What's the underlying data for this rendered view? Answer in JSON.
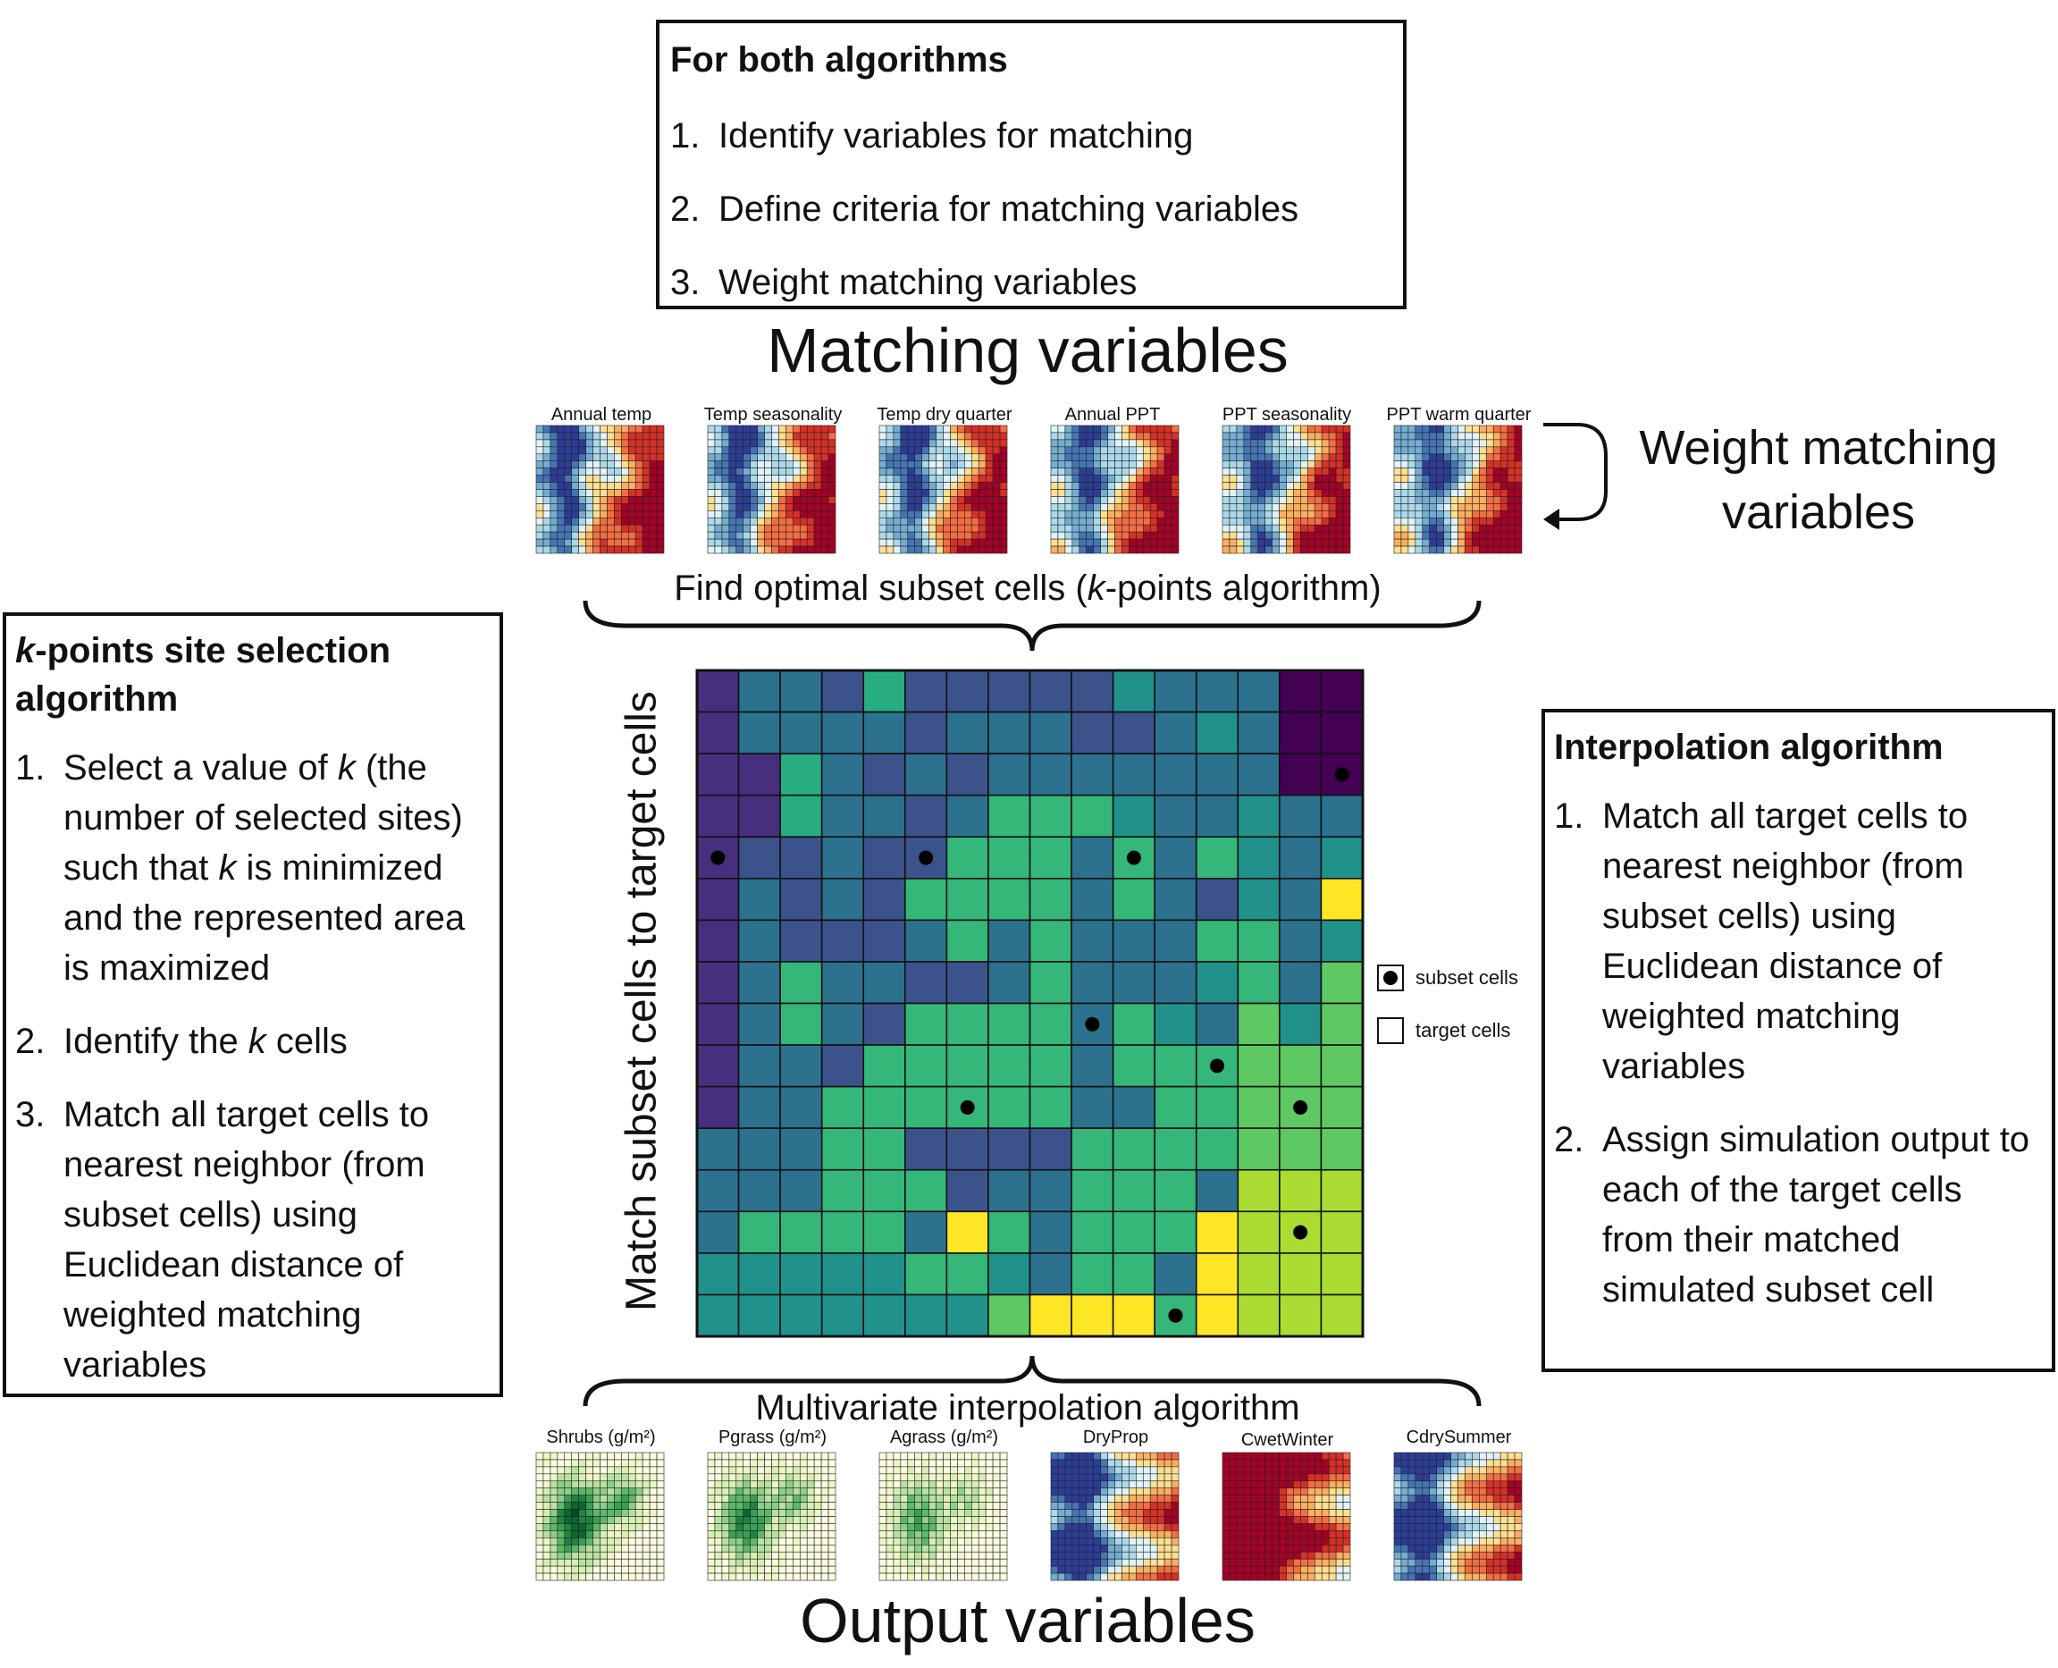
{
  "top_box": {
    "title": "For both algorithms",
    "steps": [
      "Identify variables for matching",
      "Define criteria for matching variables",
      "Weight matching variables"
    ],
    "numbers": [
      "1.",
      "2.",
      "3."
    ]
  },
  "matching_title": "Matching variables",
  "matching_maps": [
    {
      "label": "Annual temp",
      "palette": "diverging"
    },
    {
      "label": "Temp seasonality",
      "palette": "diverging"
    },
    {
      "label": "Temp dry quarter",
      "palette": "diverging"
    },
    {
      "label": "Annual PPT",
      "palette": "diverging"
    },
    {
      "label": "PPT seasonality",
      "palette": "diverging"
    },
    {
      "label": "PPT warm quarter",
      "palette": "diverging"
    }
  ],
  "weight_label_line1": "Weight matching",
  "weight_label_line2": "variables",
  "find_subset_prefix": "Find optimal subset cells (",
  "find_subset_k": "k",
  "find_subset_suffix": "-points algorithm)",
  "match_axis_label": "Match subset cells to target cells",
  "left_box": {
    "title_k": "k",
    "title_rest": "-points site selection",
    "title_line2": "algorithm",
    "numbers": [
      "1.",
      "2.",
      "3."
    ],
    "step1_parts": [
      "Select a value of ",
      "k",
      " (the number of selected sites) such that ",
      "k",
      " is minimized and the represented area is maximized"
    ],
    "step2_parts": [
      "Identify the ",
      "k",
      " cells"
    ],
    "step3": "Match all target cells to nearest neighbor (from subset cells) using Euclidean distance of weighted matching variables"
  },
  "right_box": {
    "title": "Interpolation algorithm",
    "numbers": [
      "1.",
      "2."
    ],
    "steps": [
      "Match all target cells to nearest neighbor (from subset cells) using Euclidean distance of weighted matching variables",
      "Assign simulation output to each of the target cells from their matched simulated subset cell"
    ]
  },
  "legend": {
    "subset": "subset cells",
    "target": "target cells"
  },
  "grid": {
    "rows": 16,
    "cols": 16,
    "colors": {
      "0": "#440154",
      "1": "#472f7d",
      "2": "#3b528b",
      "3": "#2c728e",
      "4": "#21918c",
      "5": "#27ad81",
      "6": "#35b779",
      "7": "#5ec962",
      "8": "#aadc32",
      "9": "#fde725"
    },
    "cells": [
      "1332522222433300",
      "1333323332234300",
      "1153232333333300",
      "1153323666433433",
      "1223226663636434",
      "1323266663632439",
      "1322236363336634",
      "1363322363334637",
      "1363266663643747",
      "1332666663666777",
      "1336666663366777",
      "3336622226666777",
      "3336662336663888",
      "3666639636669888",
      "4444466436639888",
      "4444444799969888"
    ],
    "subset_points": [
      [
        2,
        15
      ],
      [
        4,
        0
      ],
      [
        4,
        5
      ],
      [
        4,
        10
      ],
      [
        8,
        9
      ],
      [
        9,
        12
      ],
      [
        10,
        6
      ],
      [
        10,
        14
      ],
      [
        13,
        14
      ],
      [
        15,
        11
      ]
    ]
  },
  "interp_label": "Multivariate interpolation algorithm",
  "output_maps": [
    {
      "label": "Shrubs (g/m²)",
      "palette": "greens"
    },
    {
      "label": "Pgrass (g/m²)",
      "palette": "greens"
    },
    {
      "label": "Agrass (g/m²)",
      "palette": "greens"
    },
    {
      "label": "DryProp",
      "palette": "diverging"
    },
    {
      "label": "CwetWinter",
      "palette": "diverging"
    },
    {
      "label": "CdrySummer",
      "palette": "diverging"
    }
  ],
  "output_title": "Output variables"
}
